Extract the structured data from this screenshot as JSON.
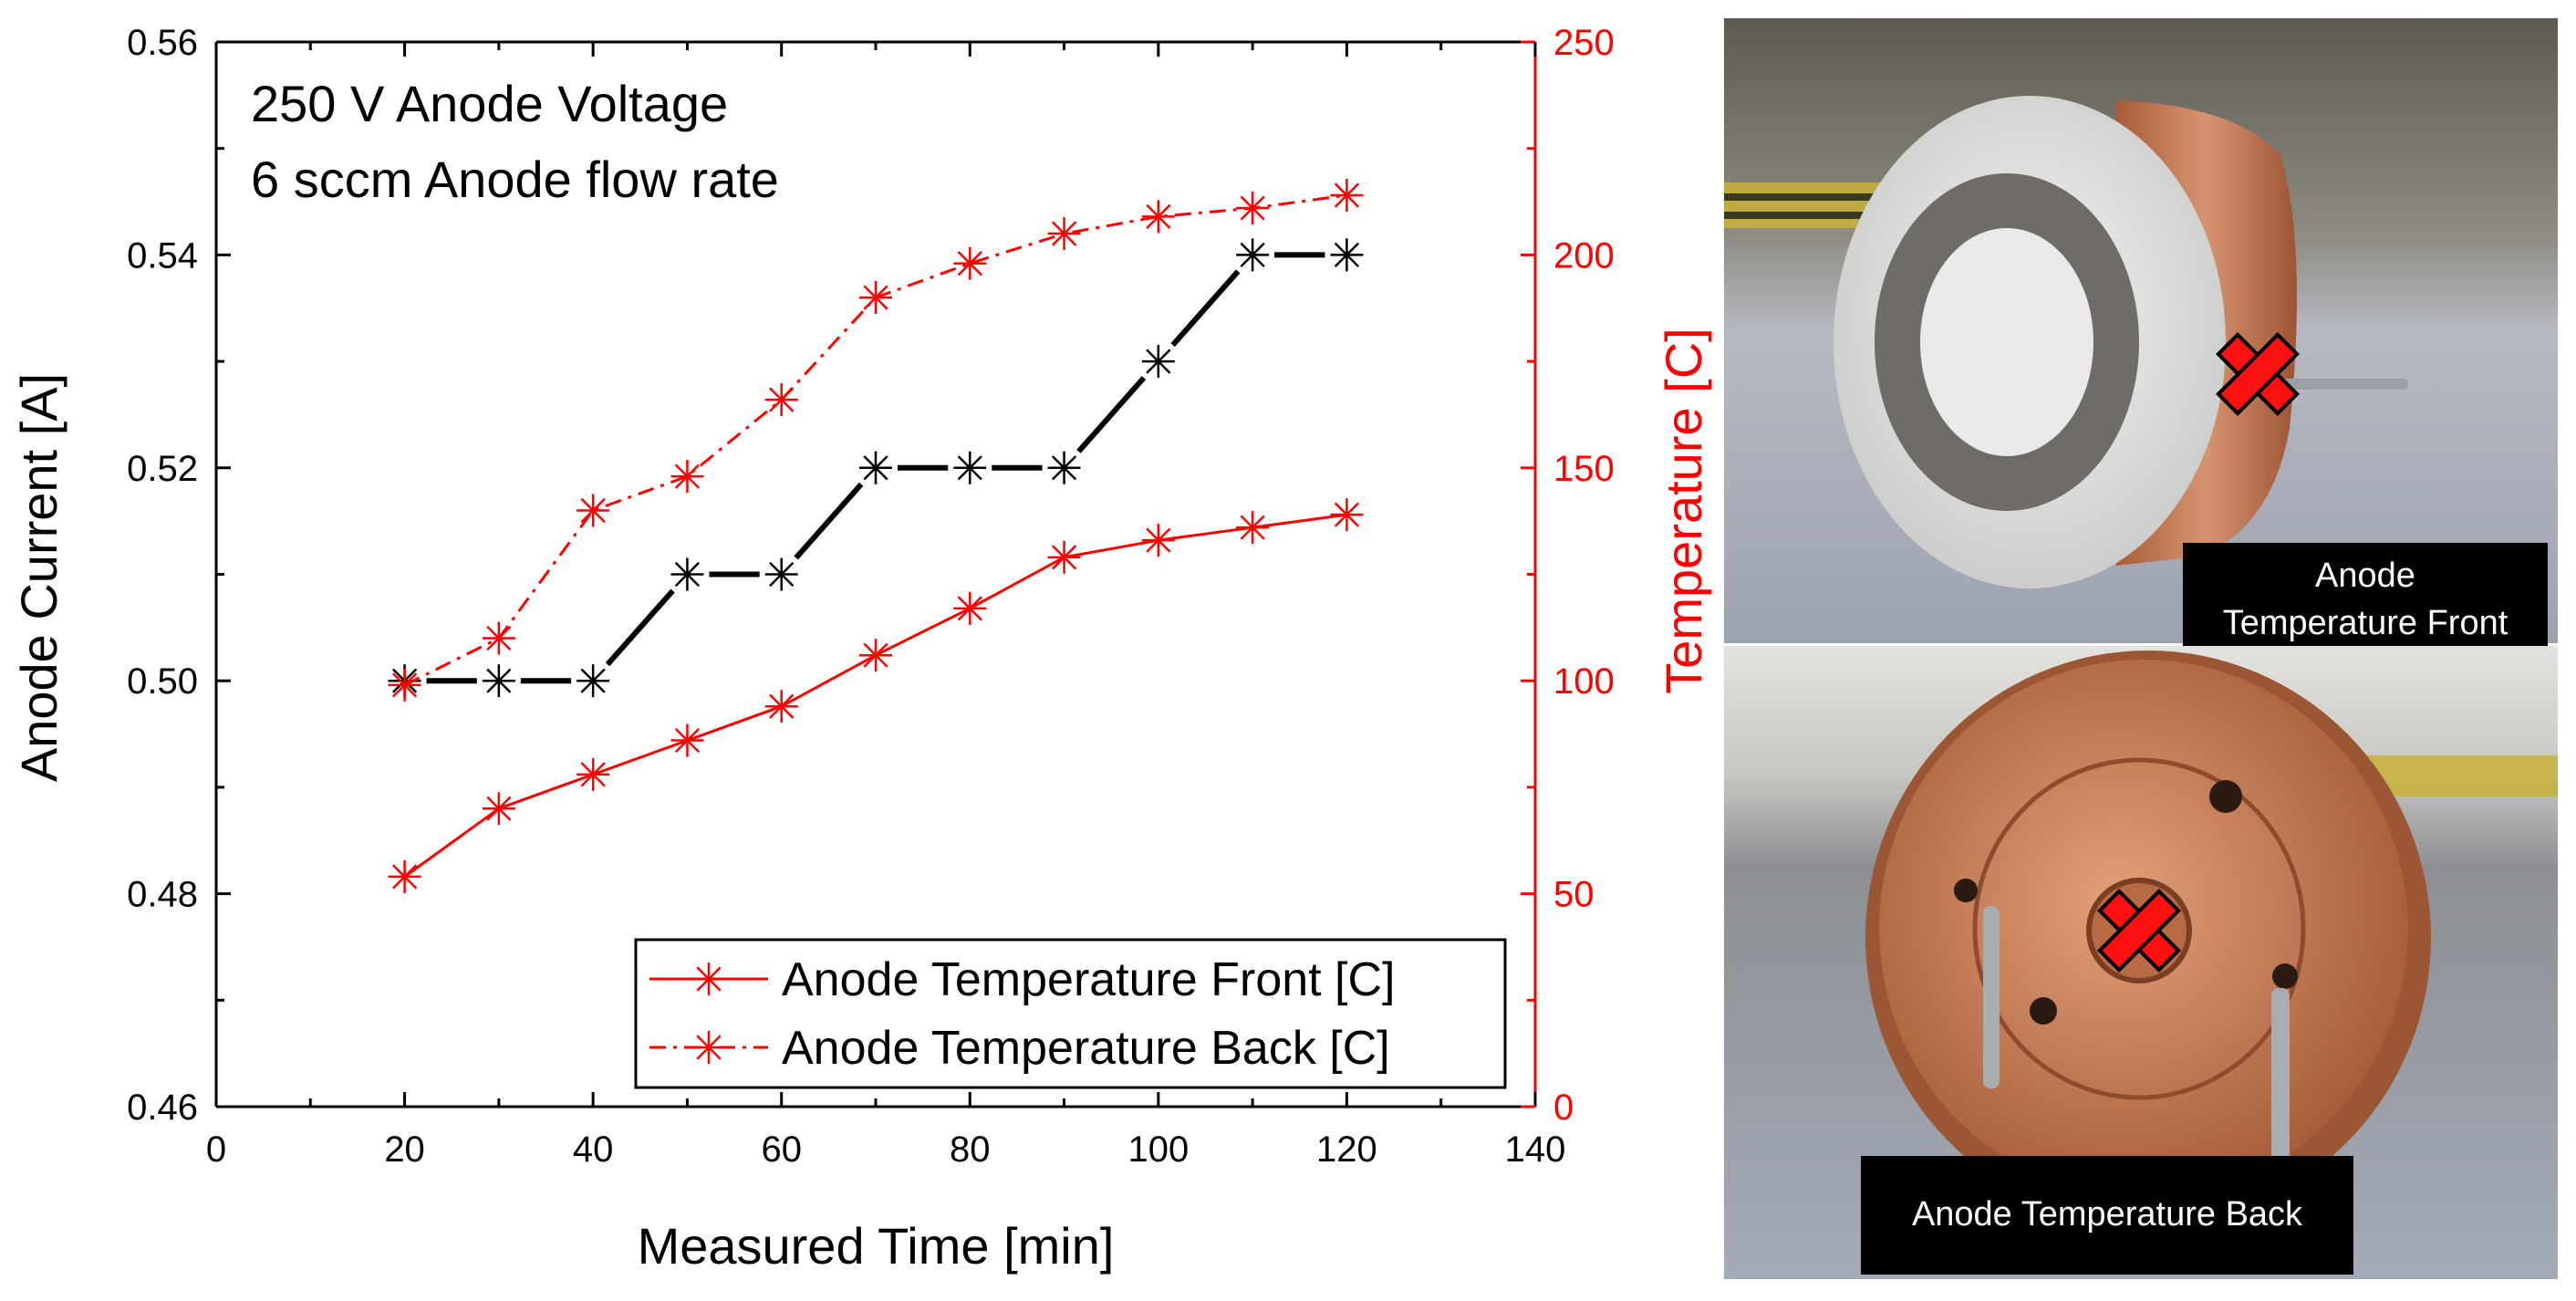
{
  "chart_data": {
    "type": "line",
    "annotation_lines": [
      "250 V Anode Voltage",
      "6 sccm Anode flow rate"
    ],
    "xlabel": "Measured Time [min]",
    "ylabel_left": "Anode Current [A]",
    "ylabel_right": "Temperature [C]",
    "xlim": [
      0,
      140
    ],
    "ylim_left": [
      0.46,
      0.56
    ],
    "ylim_right": [
      0,
      250
    ],
    "x_ticks": [
      "0",
      "20",
      "40",
      "60",
      "80",
      "100",
      "120",
      "140"
    ],
    "y_left_ticks": [
      "0.46",
      "0.48",
      "0.50",
      "0.52",
      "0.54",
      "0.56"
    ],
    "y_right_ticks": [
      "0",
      "50",
      "100",
      "150",
      "200",
      "250"
    ],
    "grid": false,
    "legend_position": "bottom-right",
    "series": [
      {
        "name": "",
        "axis": "left",
        "color": "#000000",
        "x": [
          20,
          30,
          40,
          50,
          60,
          70,
          80,
          90,
          100,
          110,
          120
        ],
        "y": [
          0.5,
          0.5,
          0.5,
          0.51,
          0.51,
          0.52,
          0.52,
          0.52,
          0.53,
          0.54,
          0.54
        ]
      },
      {
        "name": "Anode Temperature Front [C]",
        "axis": "right",
        "color": "#ff0000",
        "style": "solid",
        "x": [
          20,
          30,
          40,
          50,
          60,
          70,
          80,
          90,
          100,
          110,
          120
        ],
        "y": [
          54,
          70,
          78,
          86,
          94,
          106,
          117,
          129,
          133,
          136,
          139
        ]
      },
      {
        "name": "Anode Temperature Back [C]",
        "axis": "right",
        "color": "#ff0000",
        "style": "dashdot",
        "x": [
          20,
          30,
          40,
          50,
          60,
          70,
          80,
          90,
          100,
          110,
          120
        ],
        "y": [
          99,
          110,
          140,
          148,
          166,
          190,
          198,
          205,
          209,
          211,
          214
        ]
      }
    ]
  },
  "photos": {
    "front_caption_line1": "Anode",
    "front_caption_line2": "Temperature Front",
    "back_caption": "Anode Temperature Back",
    "marker_color": "#ff1010",
    "copper_color": "#c87a52",
    "ceramic_color": "#e8e8e6"
  }
}
